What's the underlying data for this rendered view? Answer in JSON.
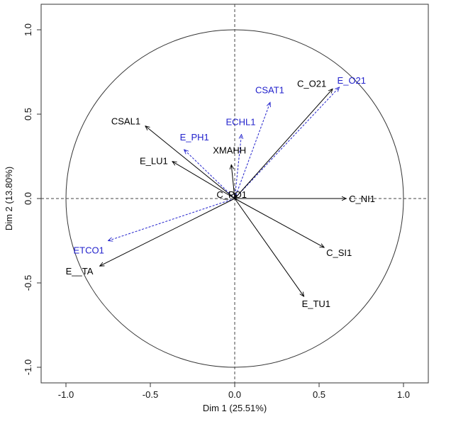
{
  "chart_data": {
    "type": "scatter",
    "title": "",
    "xlabel": "Dim 1 (25.51%)",
    "ylabel": "Dim 2 (13.80%)",
    "xlim": [
      -1.1,
      1.1
    ],
    "ylim": [
      -1.1,
      1.1
    ],
    "x_ticks": [
      "-1.0",
      "-0.5",
      "0.0",
      "0.5",
      "1.0"
    ],
    "y_ticks": [
      "-1.0",
      "-0.5",
      "0.0",
      "0.5",
      "1.0"
    ],
    "unit_circle": true,
    "reference_lines": {
      "x": 0,
      "y": 0,
      "style": "dashed"
    },
    "grid": false,
    "colors": {
      "active": "#000000",
      "supplementary": "#2222cc",
      "circle": "#333333"
    },
    "variables": [
      {
        "name": "CSAL1",
        "x": -0.53,
        "y": 0.43,
        "group": "active"
      },
      {
        "name": "E_LU1",
        "x": -0.37,
        "y": 0.22,
        "group": "active"
      },
      {
        "name": "XMAHH",
        "x": -0.02,
        "y": 0.2,
        "group": "active"
      },
      {
        "name": "C_PO1",
        "x": 0.01,
        "y": 0.02,
        "group": "active"
      },
      {
        "name": "C_O21",
        "x": 0.58,
        "y": 0.65,
        "group": "active"
      },
      {
        "name": "C_NI1",
        "x": 0.66,
        "y": 0.0,
        "group": "active"
      },
      {
        "name": "C_SI1",
        "x": 0.53,
        "y": -0.29,
        "group": "active"
      },
      {
        "name": "E_TU1",
        "x": 0.41,
        "y": -0.58,
        "group": "active"
      },
      {
        "name": "E__TA",
        "x": -0.8,
        "y": -0.4,
        "group": "active"
      },
      {
        "name": "E_O21",
        "x": 0.62,
        "y": 0.66,
        "group": "supplementary"
      },
      {
        "name": "CSAT1",
        "x": 0.21,
        "y": 0.57,
        "group": "supplementary"
      },
      {
        "name": "ECHL1",
        "x": 0.04,
        "y": 0.38,
        "group": "supplementary"
      },
      {
        "name": "E_PH1",
        "x": -0.3,
        "y": 0.29,
        "group": "supplementary"
      },
      {
        "name": "ETCO1",
        "x": -0.75,
        "y": -0.25,
        "group": "supplementary"
      }
    ]
  }
}
